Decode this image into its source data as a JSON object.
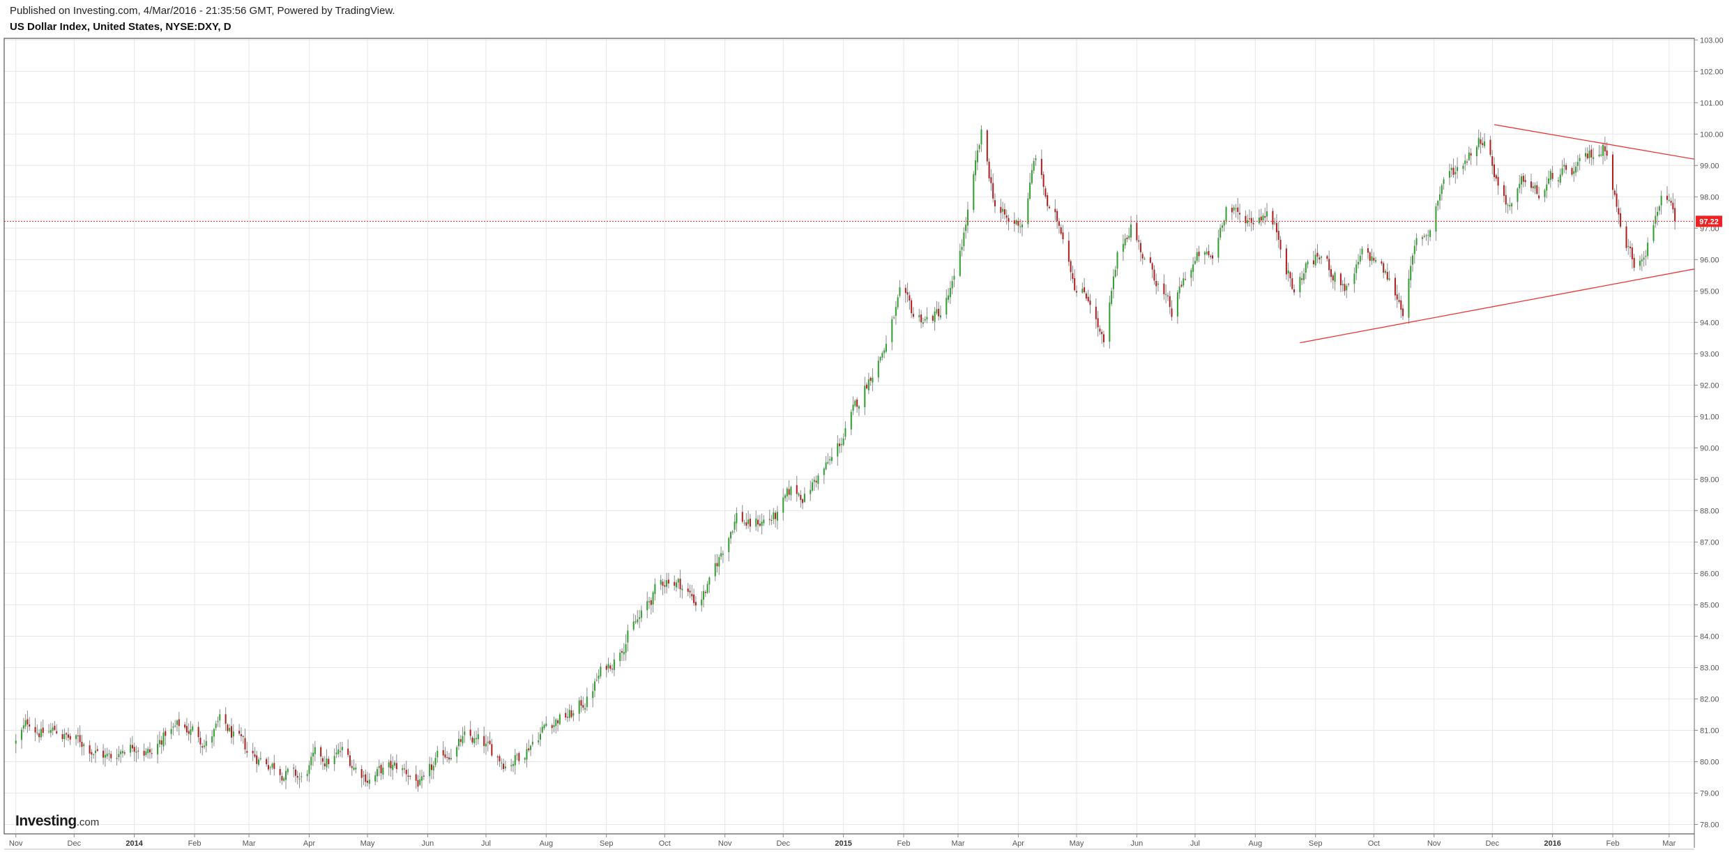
{
  "header": {
    "published": "Published on Investing.com, 4/Mar/2016 - 21:35:56 GMT, Powered by TradingView.",
    "title": "US Dollar Index, United States, NYSE:DXY, D"
  },
  "watermark": {
    "brand": "Investing",
    "tld": ".com"
  },
  "colors": {
    "up": "#2e9e2e",
    "down": "#b01c1c",
    "wick": "#8a8a8a",
    "grid": "#e6e6e6",
    "trendline": "#ee3333",
    "price_line": "#ee2222",
    "price_label_bg": "#ee2222",
    "frame": "#333333"
  },
  "chart_data": {
    "type": "candlestick",
    "title": "US Dollar Index, United States, NYSE:DXY, D",
    "xlabel": "",
    "ylabel": "",
    "ylim": [
      77.7,
      103.05
    ],
    "grid": true,
    "y_ticks": [
      "78.00",
      "79.00",
      "80.00",
      "81.00",
      "82.00",
      "83.00",
      "84.00",
      "85.00",
      "86.00",
      "87.00",
      "88.00",
      "89.00",
      "90.00",
      "91.00",
      "92.00",
      "93.00",
      "94.00",
      "95.00",
      "96.00",
      "97.00",
      "98.00",
      "99.00",
      "100.00",
      "101.00",
      "102.00",
      "103.00"
    ],
    "x_ticks": [
      {
        "label": "Nov",
        "date": "2013-11-01",
        "bold": false
      },
      {
        "label": "Dec",
        "date": "2013-12-01",
        "bold": false
      },
      {
        "label": "2014",
        "date": "2014-01-01",
        "bold": true
      },
      {
        "label": "Feb",
        "date": "2014-02-01",
        "bold": false
      },
      {
        "label": "Mar",
        "date": "2014-03-01",
        "bold": false
      },
      {
        "label": "Apr",
        "date": "2014-04-01",
        "bold": false
      },
      {
        "label": "May",
        "date": "2014-05-01",
        "bold": false
      },
      {
        "label": "Jun",
        "date": "2014-06-01",
        "bold": false
      },
      {
        "label": "Jul",
        "date": "2014-07-01",
        "bold": false
      },
      {
        "label": "Aug",
        "date": "2014-08-01",
        "bold": false
      },
      {
        "label": "Sep",
        "date": "2014-09-01",
        "bold": false
      },
      {
        "label": "Oct",
        "date": "2014-10-01",
        "bold": false
      },
      {
        "label": "Nov",
        "date": "2014-11-01",
        "bold": false
      },
      {
        "label": "Dec",
        "date": "2014-12-01",
        "bold": false
      },
      {
        "label": "2015",
        "date": "2015-01-01",
        "bold": true
      },
      {
        "label": "Feb",
        "date": "2015-02-01",
        "bold": false
      },
      {
        "label": "Mar",
        "date": "2015-03-01",
        "bold": false
      },
      {
        "label": "Apr",
        "date": "2015-04-01",
        "bold": false
      },
      {
        "label": "May",
        "date": "2015-05-01",
        "bold": false
      },
      {
        "label": "Jun",
        "date": "2015-06-01",
        "bold": false
      },
      {
        "label": "Jul",
        "date": "2015-07-01",
        "bold": false
      },
      {
        "label": "Aug",
        "date": "2015-08-01",
        "bold": false
      },
      {
        "label": "Sep",
        "date": "2015-09-01",
        "bold": false
      },
      {
        "label": "Oct",
        "date": "2015-10-01",
        "bold": false
      },
      {
        "label": "Nov",
        "date": "2015-11-01",
        "bold": false
      },
      {
        "label": "Dec",
        "date": "2015-12-01",
        "bold": false
      },
      {
        "label": "2016",
        "date": "2016-01-01",
        "bold": true
      },
      {
        "label": "Feb",
        "date": "2016-02-01",
        "bold": false
      },
      {
        "label": "Mar",
        "date": "2016-03-01",
        "bold": false
      }
    ],
    "close_path": [
      {
        "date": "2013-11-01",
        "close": 80.6
      },
      {
        "date": "2013-11-08",
        "close": 81.3
      },
      {
        "date": "2013-11-15",
        "close": 80.9
      },
      {
        "date": "2013-11-22",
        "close": 81.0
      },
      {
        "date": "2013-11-29",
        "close": 80.7
      },
      {
        "date": "2013-12-06",
        "close": 80.6
      },
      {
        "date": "2013-12-13",
        "close": 80.3
      },
      {
        "date": "2013-12-20",
        "close": 80.1
      },
      {
        "date": "2013-12-27",
        "close": 80.5
      },
      {
        "date": "2014-01-03",
        "close": 80.6
      },
      {
        "date": "2014-01-10",
        "close": 80.2
      },
      {
        "date": "2014-01-17",
        "close": 80.9
      },
      {
        "date": "2014-01-24",
        "close": 81.1
      },
      {
        "date": "2014-01-31",
        "close": 81.0
      },
      {
        "date": "2014-02-07",
        "close": 80.6
      },
      {
        "date": "2014-02-14",
        "close": 81.2
      },
      {
        "date": "2014-02-21",
        "close": 80.8
      },
      {
        "date": "2014-02-28",
        "close": 80.3
      },
      {
        "date": "2014-03-07",
        "close": 80.1
      },
      {
        "date": "2014-03-14",
        "close": 79.9
      },
      {
        "date": "2014-03-21",
        "close": 79.6
      },
      {
        "date": "2014-03-28",
        "close": 79.4
      },
      {
        "date": "2014-04-04",
        "close": 80.1
      },
      {
        "date": "2014-04-11",
        "close": 80.0
      },
      {
        "date": "2014-04-18",
        "close": 80.3
      },
      {
        "date": "2014-04-25",
        "close": 79.8
      },
      {
        "date": "2014-05-02",
        "close": 79.5
      },
      {
        "date": "2014-05-09",
        "close": 79.7
      },
      {
        "date": "2014-05-16",
        "close": 79.8
      },
      {
        "date": "2014-05-23",
        "close": 79.6
      },
      {
        "date": "2014-05-30",
        "close": 79.2
      },
      {
        "date": "2014-06-06",
        "close": 80.0
      },
      {
        "date": "2014-06-13",
        "close": 80.4
      },
      {
        "date": "2014-06-20",
        "close": 80.7
      },
      {
        "date": "2014-06-27",
        "close": 80.6
      },
      {
        "date": "2014-07-04",
        "close": 80.3
      },
      {
        "date": "2014-07-11",
        "close": 80.0
      },
      {
        "date": "2014-07-18",
        "close": 80.2
      },
      {
        "date": "2014-07-25",
        "close": 80.7
      },
      {
        "date": "2014-08-01",
        "close": 81.2
      },
      {
        "date": "2014-08-08",
        "close": 81.4
      },
      {
        "date": "2014-08-15",
        "close": 81.5
      },
      {
        "date": "2014-08-22",
        "close": 82.0
      },
      {
        "date": "2014-08-29",
        "close": 82.8
      },
      {
        "date": "2014-09-05",
        "close": 83.3
      },
      {
        "date": "2014-09-12",
        "close": 84.1
      },
      {
        "date": "2014-09-19",
        "close": 84.6
      },
      {
        "date": "2014-09-26",
        "close": 85.4
      },
      {
        "date": "2014-10-03",
        "close": 85.9
      },
      {
        "date": "2014-10-10",
        "close": 85.6
      },
      {
        "date": "2014-10-17",
        "close": 85.1
      },
      {
        "date": "2014-10-24",
        "close": 85.6
      },
      {
        "date": "2014-10-31",
        "close": 86.8
      },
      {
        "date": "2014-11-07",
        "close": 87.9
      },
      {
        "date": "2014-11-14",
        "close": 87.5
      },
      {
        "date": "2014-11-21",
        "close": 87.7
      },
      {
        "date": "2014-11-28",
        "close": 87.8
      },
      {
        "date": "2014-12-05",
        "close": 88.6
      },
      {
        "date": "2014-12-12",
        "close": 88.5
      },
      {
        "date": "2014-12-19",
        "close": 89.1
      },
      {
        "date": "2014-12-26",
        "close": 89.6
      },
      {
        "date": "2015-01-02",
        "close": 90.5
      },
      {
        "date": "2015-01-09",
        "close": 91.5
      },
      {
        "date": "2015-01-16",
        "close": 92.5
      },
      {
        "date": "2015-01-23",
        "close": 93.3
      },
      {
        "date": "2015-01-30",
        "close": 94.8
      },
      {
        "date": "2015-02-06",
        "close": 94.2
      },
      {
        "date": "2015-02-13",
        "close": 94.1
      },
      {
        "date": "2015-02-20",
        "close": 94.3
      },
      {
        "date": "2015-02-27",
        "close": 95.2
      },
      {
        "date": "2015-03-06",
        "close": 97.5
      },
      {
        "date": "2015-03-13",
        "close": 99.9
      },
      {
        "date": "2015-03-20",
        "close": 97.8
      },
      {
        "date": "2015-03-27",
        "close": 97.1
      },
      {
        "date": "2015-04-03",
        "close": 97.2
      },
      {
        "date": "2015-04-10",
        "close": 99.3
      },
      {
        "date": "2015-04-17",
        "close": 97.5
      },
      {
        "date": "2015-04-24",
        "close": 96.9
      },
      {
        "date": "2015-05-01",
        "close": 95.1
      },
      {
        "date": "2015-05-08",
        "close": 94.8
      },
      {
        "date": "2015-05-15",
        "close": 93.2
      },
      {
        "date": "2015-05-22",
        "close": 96.0
      },
      {
        "date": "2015-05-29",
        "close": 97.2
      },
      {
        "date": "2015-06-05",
        "close": 96.0
      },
      {
        "date": "2015-06-12",
        "close": 95.3
      },
      {
        "date": "2015-06-19",
        "close": 94.2
      },
      {
        "date": "2015-06-26",
        "close": 95.5
      },
      {
        "date": "2015-07-03",
        "close": 96.1
      },
      {
        "date": "2015-07-10",
        "close": 96.0
      },
      {
        "date": "2015-07-17",
        "close": 97.8
      },
      {
        "date": "2015-07-24",
        "close": 97.3
      },
      {
        "date": "2015-07-31",
        "close": 97.3
      },
      {
        "date": "2015-08-07",
        "close": 97.6
      },
      {
        "date": "2015-08-14",
        "close": 96.6
      },
      {
        "date": "2015-08-21",
        "close": 94.9
      },
      {
        "date": "2015-08-28",
        "close": 95.9
      },
      {
        "date": "2015-09-04",
        "close": 96.1
      },
      {
        "date": "2015-09-11",
        "close": 95.5
      },
      {
        "date": "2015-09-18",
        "close": 95.0
      },
      {
        "date": "2015-09-25",
        "close": 96.1
      },
      {
        "date": "2015-10-02",
        "close": 96.0
      },
      {
        "date": "2015-10-09",
        "close": 95.3
      },
      {
        "date": "2015-10-16",
        "close": 94.5
      },
      {
        "date": "2015-10-23",
        "close": 96.5
      },
      {
        "date": "2015-10-30",
        "close": 97.0
      },
      {
        "date": "2015-11-06",
        "close": 98.6
      },
      {
        "date": "2015-11-13",
        "close": 98.9
      },
      {
        "date": "2015-11-20",
        "close": 99.5
      },
      {
        "date": "2015-11-27",
        "close": 100.0
      },
      {
        "date": "2015-12-04",
        "close": 98.4
      },
      {
        "date": "2015-12-11",
        "close": 97.6
      },
      {
        "date": "2015-12-18",
        "close": 98.6
      },
      {
        "date": "2015-12-25",
        "close": 98.0
      },
      {
        "date": "2016-01-01",
        "close": 98.6
      },
      {
        "date": "2016-01-08",
        "close": 98.7
      },
      {
        "date": "2016-01-15",
        "close": 98.9
      },
      {
        "date": "2016-01-22",
        "close": 99.4
      },
      {
        "date": "2016-01-29",
        "close": 99.6
      },
      {
        "date": "2016-02-05",
        "close": 97.0
      },
      {
        "date": "2016-02-12",
        "close": 95.9
      },
      {
        "date": "2016-02-19",
        "close": 96.6
      },
      {
        "date": "2016-02-26",
        "close": 98.1
      },
      {
        "date": "2016-03-04",
        "close": 97.22
      }
    ],
    "trendlines": [
      {
        "name": "upper",
        "from": {
          "date": "2015-12-02",
          "value": 100.3
        },
        "to": {
          "date": "2016-03-14",
          "value": 99.2
        }
      },
      {
        "name": "lower",
        "from": {
          "date": "2015-08-24",
          "value": 93.35
        },
        "to": {
          "date": "2016-03-14",
          "value": 95.7
        }
      }
    ],
    "last_price": {
      "value": 97.22,
      "label": "97.22"
    }
  }
}
